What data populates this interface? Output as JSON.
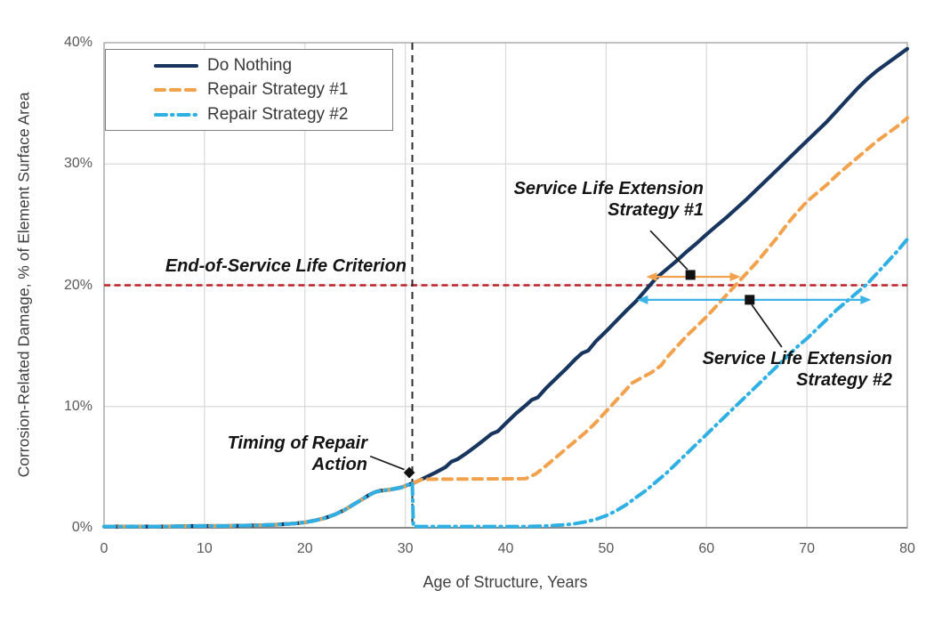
{
  "chart_data": {
    "type": "line",
    "title": "",
    "xlabel": "Age of Structure, Years",
    "ylabel": "Corrosion-Related Damage, % of Element Surface Area",
    "xlim": [
      0,
      80
    ],
    "ylim": [
      0,
      40
    ],
    "x_ticks": [
      0,
      10,
      20,
      30,
      40,
      50,
      60,
      70,
      80
    ],
    "x_tick_labels": [
      "0",
      "10",
      "20",
      "30",
      "40",
      "50",
      "60",
      "70",
      "80"
    ],
    "y_ticks": [
      0,
      10,
      20,
      30,
      40
    ],
    "y_tick_labels": [
      "0%",
      "10%",
      "20%",
      "30%",
      "40%"
    ],
    "grid": true,
    "legend_position": "top-left",
    "colors": {
      "grid": "#D9D9D9",
      "border": "#A6A6A6",
      "axis": "#7F7F7F",
      "tick_text": "#595959",
      "axis_title_text": "#404040",
      "annotation_text": "#141414"
    },
    "series": [
      {
        "name": "Do Nothing",
        "color": "#17355E",
        "style": "solid",
        "dash": "",
        "width": 4.2,
        "points": [
          [
            0,
            0.1
          ],
          [
            3,
            0.1
          ],
          [
            6,
            0.1
          ],
          [
            9,
            0.15
          ],
          [
            12,
            0.15
          ],
          [
            15,
            0.2
          ],
          [
            17,
            0.25
          ],
          [
            18,
            0.3
          ],
          [
            19,
            0.35
          ],
          [
            20,
            0.45
          ],
          [
            21,
            0.6
          ],
          [
            22,
            0.8
          ],
          [
            23,
            1.1
          ],
          [
            24,
            1.5
          ],
          [
            25,
            2.0
          ],
          [
            26,
            2.5
          ],
          [
            26.5,
            2.75
          ],
          [
            27,
            2.95
          ],
          [
            27.5,
            3.05
          ],
          [
            28.5,
            3.15
          ],
          [
            29.5,
            3.3
          ],
          [
            30,
            3.45
          ],
          [
            31,
            3.75
          ],
          [
            32,
            4.15
          ],
          [
            33,
            4.55
          ],
          [
            34,
            5.0
          ],
          [
            34.6,
            5.45
          ],
          [
            35.2,
            5.65
          ],
          [
            36,
            6.1
          ],
          [
            37,
            6.7
          ],
          [
            38,
            7.35
          ],
          [
            38.6,
            7.75
          ],
          [
            39.2,
            7.95
          ],
          [
            40,
            8.6
          ],
          [
            41,
            9.4
          ],
          [
            42,
            10.1
          ],
          [
            42.6,
            10.55
          ],
          [
            43.2,
            10.75
          ],
          [
            44,
            11.5
          ],
          [
            45,
            12.3
          ],
          [
            46,
            13.1
          ],
          [
            47,
            13.95
          ],
          [
            47.6,
            14.4
          ],
          [
            48.2,
            14.6
          ],
          [
            49,
            15.4
          ],
          [
            50,
            16.2
          ],
          [
            51,
            17.05
          ],
          [
            52,
            17.9
          ],
          [
            53,
            18.7
          ],
          [
            54,
            19.65
          ],
          [
            55,
            20.6
          ],
          [
            56,
            21.3
          ],
          [
            57,
            22.0
          ],
          [
            58,
            22.75
          ],
          [
            59,
            23.45
          ],
          [
            60,
            24.2
          ],
          [
            61,
            24.9
          ],
          [
            62,
            25.6
          ],
          [
            63,
            26.35
          ],
          [
            64,
            27.1
          ],
          [
            65,
            27.9
          ],
          [
            66,
            28.7
          ],
          [
            67,
            29.5
          ],
          [
            68,
            30.3
          ],
          [
            69,
            31.1
          ],
          [
            70,
            31.9
          ],
          [
            71,
            32.7
          ],
          [
            72,
            33.5
          ],
          [
            73,
            34.4
          ],
          [
            74,
            35.3
          ],
          [
            75,
            36.2
          ],
          [
            76,
            37.0
          ],
          [
            77,
            37.7
          ],
          [
            78,
            38.3
          ],
          [
            79,
            38.9
          ],
          [
            80,
            39.5
          ]
        ]
      },
      {
        "name": "Repair Strategy #1",
        "color": "#F2A14C",
        "style": "dashed",
        "dash": "10 7",
        "width": 4,
        "points": [
          [
            0,
            0.1
          ],
          [
            3,
            0.1
          ],
          [
            6,
            0.1
          ],
          [
            9,
            0.15
          ],
          [
            12,
            0.15
          ],
          [
            15,
            0.2
          ],
          [
            17,
            0.25
          ],
          [
            18,
            0.3
          ],
          [
            19,
            0.35
          ],
          [
            20,
            0.45
          ],
          [
            21,
            0.6
          ],
          [
            22,
            0.8
          ],
          [
            23,
            1.1
          ],
          [
            24,
            1.5
          ],
          [
            25,
            2.0
          ],
          [
            26,
            2.5
          ],
          [
            27,
            2.95
          ],
          [
            28,
            3.1
          ],
          [
            29.5,
            3.3
          ],
          [
            30,
            3.45
          ],
          [
            31,
            3.75
          ],
          [
            31.5,
            3.95
          ],
          [
            32,
            4.0
          ],
          [
            42,
            4.05
          ],
          [
            43,
            4.45
          ],
          [
            44,
            5.1
          ],
          [
            45,
            5.8
          ],
          [
            46,
            6.5
          ],
          [
            47,
            7.2
          ],
          [
            48,
            7.9
          ],
          [
            49,
            8.7
          ],
          [
            50,
            9.6
          ],
          [
            51,
            10.5
          ],
          [
            52,
            11.4
          ],
          [
            52.5,
            11.9
          ],
          [
            53.5,
            12.35
          ],
          [
            54.5,
            12.8
          ],
          [
            55.5,
            13.4
          ],
          [
            56,
            14.0
          ],
          [
            57,
            14.9
          ],
          [
            58,
            15.8
          ],
          [
            59,
            16.6
          ],
          [
            60,
            17.4
          ],
          [
            61,
            18.3
          ],
          [
            62,
            19.2
          ],
          [
            63,
            20.1
          ],
          [
            64,
            21.0
          ],
          [
            65,
            21.9
          ],
          [
            66,
            22.9
          ],
          [
            67,
            23.9
          ],
          [
            68,
            25.0
          ],
          [
            69,
            26.0
          ],
          [
            70,
            26.9
          ],
          [
            71,
            27.6
          ],
          [
            72,
            28.3
          ],
          [
            73,
            29.1
          ],
          [
            74,
            29.8
          ],
          [
            75,
            30.5
          ],
          [
            76,
            31.2
          ],
          [
            77,
            31.9
          ],
          [
            78,
            32.5
          ],
          [
            79,
            33.1
          ],
          [
            80,
            33.8
          ]
        ]
      },
      {
        "name": "Repair Strategy #2",
        "color": "#2FB0E4",
        "style": "dash-dot",
        "dash": "12 6 1.5 6",
        "width": 4,
        "points": [
          [
            0,
            0.1
          ],
          [
            3,
            0.1
          ],
          [
            6,
            0.1
          ],
          [
            9,
            0.15
          ],
          [
            12,
            0.15
          ],
          [
            15,
            0.2
          ],
          [
            17,
            0.25
          ],
          [
            18,
            0.3
          ],
          [
            19,
            0.35
          ],
          [
            20,
            0.45
          ],
          [
            21,
            0.6
          ],
          [
            22,
            0.8
          ],
          [
            23,
            1.1
          ],
          [
            24,
            1.5
          ],
          [
            25,
            2.0
          ],
          [
            26,
            2.5
          ],
          [
            27,
            2.95
          ],
          [
            28,
            3.1
          ],
          [
            29.5,
            3.3
          ],
          [
            30,
            3.45
          ],
          [
            30.7,
            3.7
          ],
          [
            30.8,
            0.1
          ],
          [
            42,
            0.1
          ],
          [
            44,
            0.15
          ],
          [
            45,
            0.2
          ],
          [
            46,
            0.25
          ],
          [
            47,
            0.35
          ],
          [
            48,
            0.5
          ],
          [
            49,
            0.7
          ],
          [
            50,
            1.0
          ],
          [
            51,
            1.4
          ],
          [
            52,
            1.9
          ],
          [
            53,
            2.5
          ],
          [
            54,
            3.1
          ],
          [
            55,
            3.8
          ],
          [
            56,
            4.5
          ],
          [
            57,
            5.3
          ],
          [
            58,
            6.1
          ],
          [
            59,
            6.9
          ],
          [
            60,
            7.7
          ],
          [
            61,
            8.5
          ],
          [
            62,
            9.3
          ],
          [
            63,
            10.1
          ],
          [
            64,
            10.9
          ],
          [
            65,
            11.7
          ],
          [
            66,
            12.5
          ],
          [
            67,
            13.3
          ],
          [
            68,
            14.1
          ],
          [
            69,
            14.9
          ],
          [
            70,
            15.6
          ],
          [
            71,
            16.4
          ],
          [
            72,
            17.2
          ],
          [
            73,
            18.0
          ],
          [
            74,
            18.7
          ],
          [
            75,
            19.4
          ],
          [
            76,
            20.1
          ],
          [
            77,
            21.0
          ],
          [
            78,
            21.9
          ],
          [
            79,
            22.8
          ],
          [
            80,
            23.8
          ]
        ]
      }
    ],
    "reference_lines": [
      {
        "name": "end-of-service-life-criterion",
        "orientation": "horizontal",
        "value": 20,
        "color": "#BE2026",
        "dash": "7 4.5",
        "width": 2.6
      },
      {
        "name": "timing-of-repair-action",
        "orientation": "vertical",
        "value": 30.7,
        "color": "#2B2B2B",
        "dash": "8 6",
        "width": 2
      }
    ],
    "arrows": [
      {
        "name": "service-life-extension-1-span",
        "y": 20.7,
        "x1": 54.0,
        "x2": 63.4,
        "color": "#F2A14C",
        "width": 2.2
      },
      {
        "name": "service-life-extension-2-span",
        "y": 18.8,
        "x1": 53.1,
        "x2": 76.4,
        "color": "#3CB4E7",
        "width": 2.2
      }
    ],
    "markers": [
      {
        "name": "sle1-anchor",
        "x": 58.4,
        "y": 20.85,
        "shape": "square",
        "color": "#111111"
      },
      {
        "name": "sle2-anchor",
        "x": 64.3,
        "y": 18.8,
        "shape": "square",
        "color": "#111111"
      },
      {
        "name": "timing-anchor",
        "x": 30.4,
        "y": 4.55,
        "shape": "diamond",
        "color": "#111111"
      }
    ],
    "leader_lines": [
      {
        "name": "sle1-leader",
        "from": [
          54.4,
          24.5
        ],
        "to": [
          58.1,
          21.3
        ]
      },
      {
        "name": "sle2-leader",
        "from": [
          64.5,
          18.4
        ],
        "to": [
          67.5,
          14.9
        ]
      },
      {
        "name": "timing-leader",
        "from": [
          26.5,
          5.9
        ],
        "to": [
          29.9,
          4.8
        ]
      }
    ],
    "annotations": {
      "eos": {
        "text": "End-of-Service Life Criterion",
        "x": 30,
        "y": 21.5
      },
      "sle1": {
        "lines": [
          "Service Life Extension",
          "Strategy #1"
        ],
        "x": 59.7,
        "y": 25.5
      },
      "sle2": {
        "lines": [
          "Service Life Extension",
          "Strategy #2"
        ],
        "x": 78.5,
        "y": 13.5
      },
      "timing": {
        "lines": [
          "Timing of Repair",
          "Action"
        ],
        "x": 26.2,
        "y": 6.5
      }
    }
  },
  "legend": {
    "items": [
      {
        "label": "Do Nothing"
      },
      {
        "label": "Repair Strategy #1"
      },
      {
        "label": "Repair Strategy #2"
      }
    ]
  }
}
